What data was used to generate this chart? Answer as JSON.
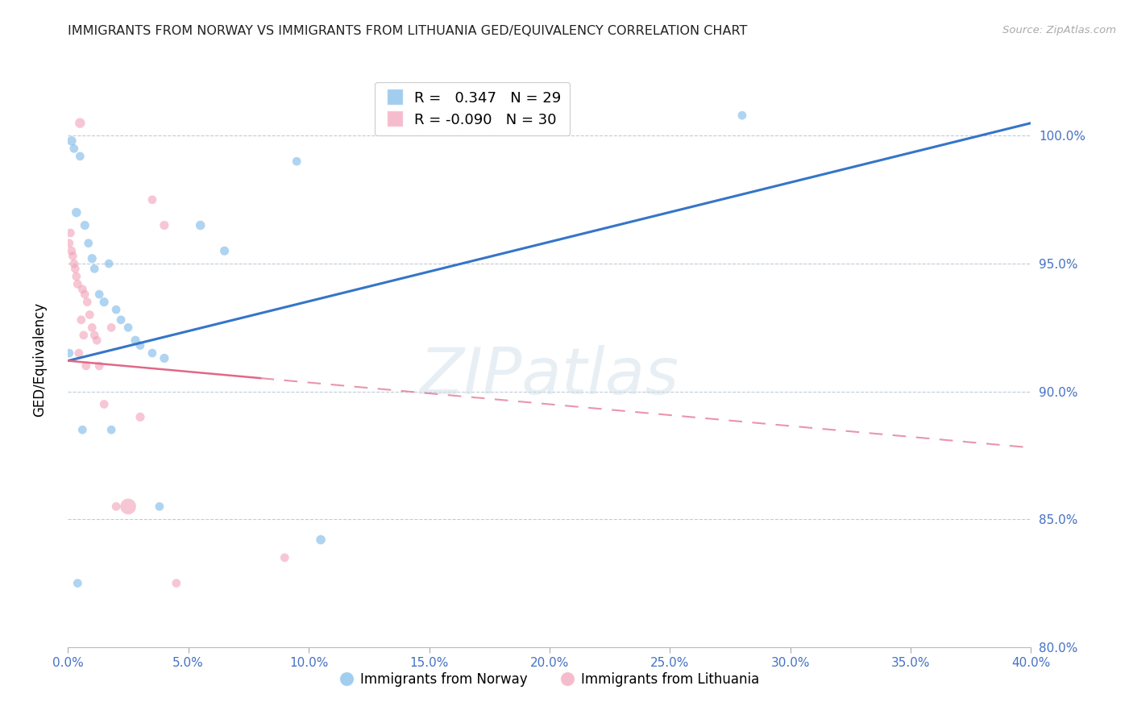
{
  "title": "IMMIGRANTS FROM NORWAY VS IMMIGRANTS FROM LITHUANIA GED/EQUIVALENCY CORRELATION CHART",
  "source": "Source: ZipAtlas.com",
  "xlim": [
    0.0,
    40.0
  ],
  "ylim": [
    80.0,
    102.5
  ],
  "x_tick_vals": [
    0.0,
    5.0,
    10.0,
    15.0,
    20.0,
    25.0,
    30.0,
    35.0,
    40.0
  ],
  "y_tick_vals": [
    80.0,
    85.0,
    90.0,
    95.0,
    100.0
  ],
  "norway_R": 0.347,
  "norway_N": 29,
  "lithuania_R": -0.09,
  "lithuania_N": 30,
  "norway_color": "#7ab8e8",
  "lithuania_color": "#f2a0b8",
  "norway_line_color": "#3575c8",
  "lithuania_line_color": "#e06888",
  "watermark": "ZIPatlas",
  "norway_line_y0": 91.2,
  "norway_line_y1": 100.5,
  "lithuania_line_y0": 91.2,
  "lithuania_line_y1": 87.8,
  "norway_x": [
    0.05,
    0.15,
    0.25,
    0.35,
    0.5,
    0.7,
    0.85,
    1.0,
    1.1,
    1.3,
    1.5,
    1.7,
    2.0,
    2.2,
    2.5,
    2.8,
    3.0,
    3.5,
    4.0,
    5.5,
    6.5,
    9.5,
    10.5,
    14.0,
    28.0,
    0.6,
    1.8,
    3.8,
    0.4
  ],
  "norway_y": [
    91.5,
    99.8,
    99.5,
    97.0,
    99.2,
    96.5,
    95.8,
    95.2,
    94.8,
    93.8,
    93.5,
    95.0,
    93.2,
    92.8,
    92.5,
    92.0,
    91.8,
    91.5,
    91.3,
    96.5,
    95.5,
    99.0,
    84.2,
    100.5,
    100.8,
    88.5,
    88.5,
    85.5,
    82.5
  ],
  "norway_sizes": [
    60,
    70,
    60,
    70,
    60,
    65,
    60,
    65,
    60,
    60,
    65,
    60,
    60,
    60,
    60,
    65,
    60,
    60,
    65,
    70,
    65,
    60,
    70,
    60,
    60,
    60,
    60,
    60,
    60
  ],
  "lithuania_x": [
    0.05,
    0.1,
    0.15,
    0.2,
    0.25,
    0.3,
    0.35,
    0.4,
    0.5,
    0.6,
    0.7,
    0.8,
    0.9,
    1.0,
    1.1,
    1.2,
    1.5,
    2.0,
    2.5,
    3.0,
    3.5,
    4.0,
    4.5,
    9.0,
    0.45,
    0.55,
    0.65,
    0.75,
    1.3,
    1.8
  ],
  "lithuania_y": [
    95.8,
    96.2,
    95.5,
    95.3,
    95.0,
    94.8,
    94.5,
    94.2,
    100.5,
    94.0,
    93.8,
    93.5,
    93.0,
    92.5,
    92.2,
    92.0,
    89.5,
    85.5,
    85.5,
    89.0,
    97.5,
    96.5,
    82.5,
    83.5,
    91.5,
    92.8,
    92.2,
    91.0,
    91.0,
    92.5
  ],
  "lithuania_sizes": [
    60,
    60,
    60,
    60,
    60,
    60,
    60,
    60,
    80,
    60,
    60,
    60,
    60,
    60,
    60,
    60,
    60,
    60,
    200,
    65,
    60,
    65,
    60,
    60,
    60,
    60,
    60,
    60,
    60,
    60
  ]
}
